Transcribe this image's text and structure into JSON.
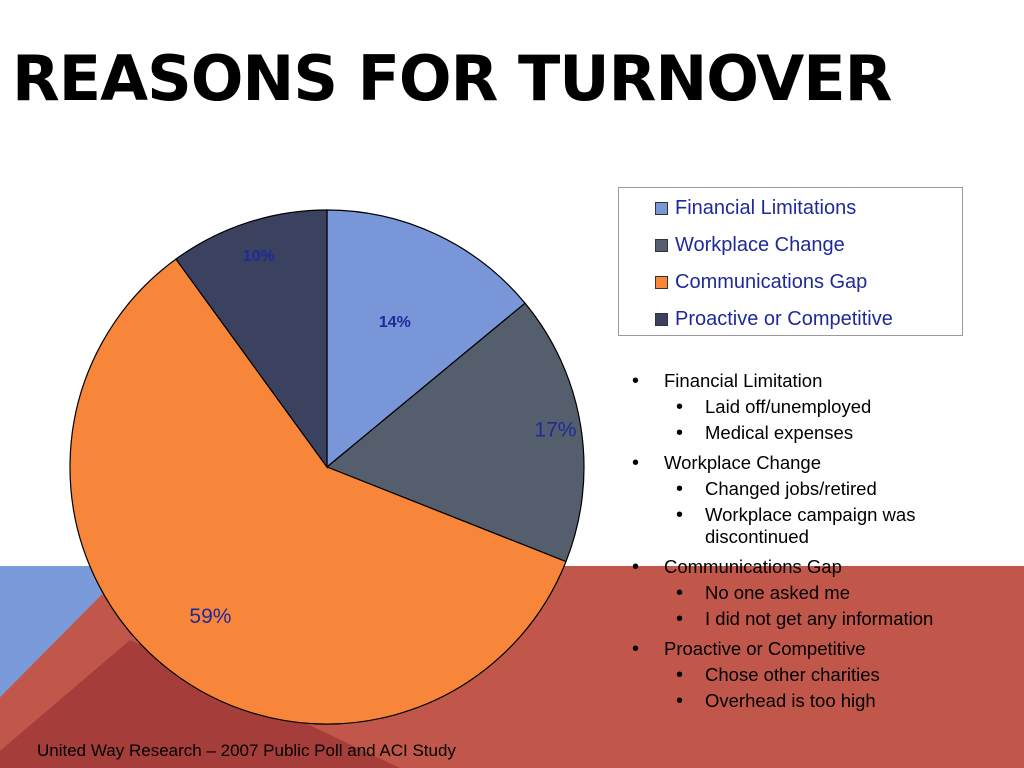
{
  "slide": {
    "title": "REASONS FOR TURNOVER",
    "source": "United Way Research – 2007 Public Poll and ACI Study"
  },
  "chart_data": {
    "type": "pie",
    "categories": [
      "Financial Limitations",
      "Workplace Change",
      "Communications Gap",
      "Proactive or Competitive"
    ],
    "values": [
      14,
      17,
      59,
      10
    ],
    "labels": [
      "14%",
      "17%",
      "59%",
      "10%"
    ],
    "colors": [
      "#7896d8",
      "#555e6c",
      "#f8863a",
      "#3a4260"
    ],
    "legend_placement": "top-right"
  },
  "bullets": [
    {
      "label": "Financial Limitation",
      "subs": [
        "Laid off/unemployed",
        "Medical expenses"
      ]
    },
    {
      "label": "Workplace Change",
      "subs": [
        "Changed jobs/retired",
        "Workplace campaign was discontinued"
      ]
    },
    {
      "label": "Communications Gap",
      "subs": [
        "No one asked me",
        "I did not get any information"
      ]
    },
    {
      "label": "Proactive or Competitive",
      "subs": [
        "Chose other charities",
        "Overhead is too high"
      ]
    }
  ]
}
